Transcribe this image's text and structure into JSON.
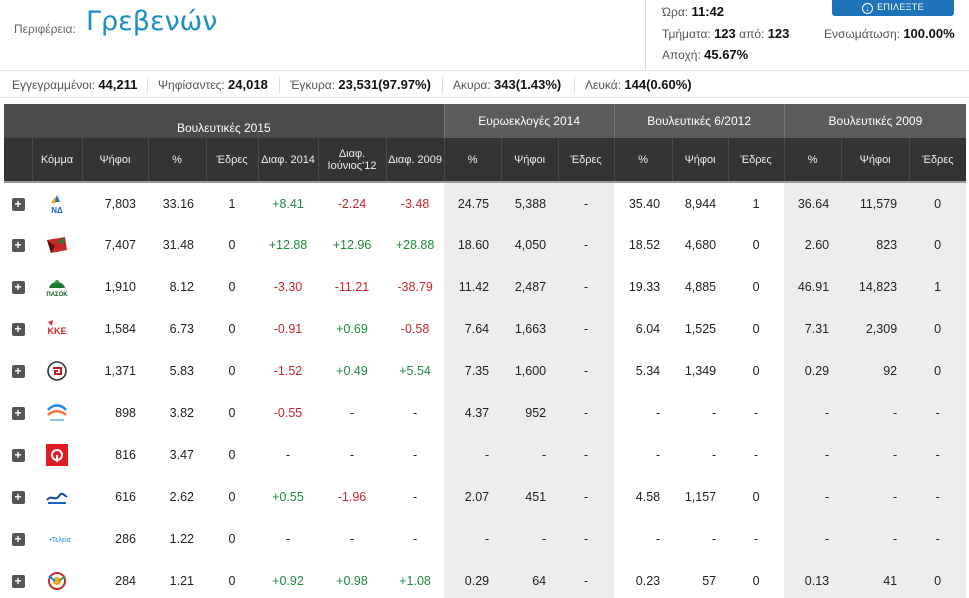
{
  "header": {
    "region_label": "Περιφέρεια:",
    "region_name": "Γρεβενών",
    "time_label": "Ώρα:",
    "time_value": "11:42",
    "sections_label": "Τμήματα:",
    "sections_counted": "123",
    "sections_of": "από:",
    "sections_total": "123",
    "integration_label": "Ενσωμάτωση:",
    "integration_value": "100.00%",
    "abstention_label": "Αποχή:",
    "abstention_value": "45.67%",
    "select_button": "ΕΠΙΛΕΞΤΕ ΠΕΡΙΦΕΡΕΙΑ"
  },
  "summary": {
    "registered_label": "Εγγεγραμμένοι:",
    "registered_value": "44,211",
    "voted_label": "Ψηφίσαντες:",
    "voted_value": "24,018",
    "valid_label": "Έγκυρα:",
    "valid_value": "23,531(97.97%)",
    "invalid_label": "Ακυρα:",
    "invalid_value": "343(1.43%)",
    "blank_label": "Λευκά:",
    "blank_value": "144(0.60%)"
  },
  "table": {
    "group_headers": [
      "Βουλευτικές 2015",
      "Ευρωεκλογές 2014",
      "Βουλευτικές 6/2012",
      "Βουλευτικές 2009"
    ],
    "col_headers": [
      "Κόμμα",
      "Ψήφοι",
      "%",
      "Έδρες",
      "Διαφ. 2014",
      "Διαφ. Ιούνιος'12",
      "Διαφ. 2009",
      "%",
      "Ψήφοι",
      "Έδρες",
      "%",
      "Ψήφοι",
      "Έδρες",
      "%",
      "Ψήφοι",
      "Έδρες"
    ],
    "rows": [
      {
        "logo": "nd-logo",
        "votes": "7,803",
        "pct": "33.16",
        "seats": "1",
        "d14": "+8.41",
        "d12": "-2.24",
        "d09": "-3.48",
        "e14_pct": "24.75",
        "e14_votes": "5,388",
        "e14_seats": "-",
        "v12_pct": "35.40",
        "v12_votes": "8,944",
        "v12_seats": "1",
        "v09_pct": "36.64",
        "v09_votes": "11,579",
        "v09_seats": "0"
      },
      {
        "logo": "syriza-logo",
        "votes": "7,407",
        "pct": "31.48",
        "seats": "0",
        "d14": "+12.88",
        "d12": "+12.96",
        "d09": "+28.88",
        "e14_pct": "18.60",
        "e14_votes": "4,050",
        "e14_seats": "-",
        "v12_pct": "18.52",
        "v12_votes": "4,680",
        "v12_seats": "0",
        "v09_pct": "2.60",
        "v09_votes": "823",
        "v09_seats": "0"
      },
      {
        "logo": "pasok-logo",
        "votes": "1,910",
        "pct": "8.12",
        "seats": "0",
        "d14": "-3.30",
        "d12": "-11.21",
        "d09": "-38.79",
        "e14_pct": "11.42",
        "e14_votes": "2,487",
        "e14_seats": "-",
        "v12_pct": "19.33",
        "v12_votes": "4,885",
        "v12_seats": "0",
        "v09_pct": "46.91",
        "v09_votes": "14,823",
        "v09_seats": "1"
      },
      {
        "logo": "kke-logo",
        "votes": "1,584",
        "pct": "6.73",
        "seats": "0",
        "d14": "-0.91",
        "d12": "+0.69",
        "d09": "-0.58",
        "e14_pct": "7.64",
        "e14_votes": "1,663",
        "e14_seats": "-",
        "v12_pct": "6.04",
        "v12_votes": "1,525",
        "v12_seats": "0",
        "v09_pct": "7.31",
        "v09_votes": "2,309",
        "v09_seats": "0"
      },
      {
        "logo": "xa-logo",
        "votes": "1,371",
        "pct": "5.83",
        "seats": "0",
        "d14": "-1.52",
        "d12": "+0.49",
        "d09": "+5.54",
        "e14_pct": "7.35",
        "e14_votes": "1,600",
        "e14_seats": "-",
        "v12_pct": "5.34",
        "v12_votes": "1,349",
        "v12_seats": "0",
        "v09_pct": "0.29",
        "v09_votes": "92",
        "v09_seats": "0"
      },
      {
        "logo": "potami-logo",
        "votes": "898",
        "pct": "3.82",
        "seats": "0",
        "d14": "-0.55",
        "d12": "-",
        "d09": "-",
        "e14_pct": "4.37",
        "e14_votes": "952",
        "e14_seats": "-",
        "v12_pct": "-",
        "v12_votes": "-",
        "v12_seats": "-",
        "v09_pct": "-",
        "v09_votes": "-",
        "v09_seats": "-"
      },
      {
        "logo": "kinima-logo",
        "votes": "816",
        "pct": "3.47",
        "seats": "0",
        "d14": "-",
        "d12": "-",
        "d09": "-",
        "e14_pct": "-",
        "e14_votes": "-",
        "e14_seats": "-",
        "v12_pct": "-",
        "v12_votes": "-",
        "v12_seats": "-",
        "v09_pct": "-",
        "v09_votes": "-",
        "v09_seats": "-"
      },
      {
        "logo": "anel-logo",
        "votes": "616",
        "pct": "2.62",
        "seats": "0",
        "d14": "+0.55",
        "d12": "-1.96",
        "d09": "-",
        "e14_pct": "2.07",
        "e14_votes": "451",
        "e14_seats": "-",
        "v12_pct": "4.58",
        "v12_votes": "1,157",
        "v12_seats": "0",
        "v09_pct": "-",
        "v09_votes": "-",
        "v09_seats": "-"
      },
      {
        "logo": "teleia-logo",
        "votes": "286",
        "pct": "1.22",
        "seats": "0",
        "d14": "-",
        "d12": "-",
        "d09": "-",
        "e14_pct": "-",
        "e14_votes": "-",
        "e14_seats": "-",
        "v12_pct": "-",
        "v12_votes": "-",
        "v12_seats": "-",
        "v09_pct": "-",
        "v09_votes": "-",
        "v09_seats": "-"
      },
      {
        "logo": "antarsya-logo",
        "votes": "284",
        "pct": "1.21",
        "seats": "0",
        "d14": "+0.92",
        "d12": "+0.98",
        "d09": "+1.08",
        "e14_pct": "0.29",
        "e14_votes": "64",
        "e14_seats": "-",
        "v12_pct": "0.23",
        "v12_votes": "57",
        "v12_seats": "0",
        "v09_pct": "0.13",
        "v09_votes": "41",
        "v09_seats": "0"
      }
    ],
    "logo_texts": {
      "nd": "ΝΔ",
      "pasok": "ΠΑΣΟΚ",
      "kke": "ΚΚΕ",
      "teleia": "•Τελεία"
    }
  },
  "colors": {
    "accent": "#1f8ec6",
    "positive": "#1d8a3c",
    "negative": "#c62828",
    "header_dark": "#343434",
    "header_mid": "#5c5c5c"
  }
}
